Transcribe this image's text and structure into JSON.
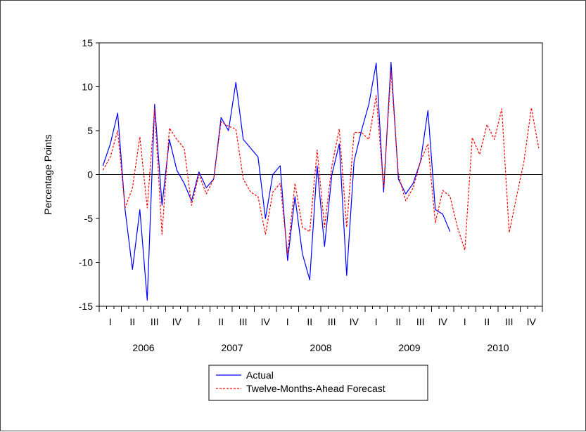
{
  "chart_data": {
    "type": "line",
    "ylabel": "Percentage Points",
    "ylim": [
      -15,
      15
    ],
    "yticks": [
      15,
      10,
      5,
      0,
      -5,
      -10,
      -15
    ],
    "x_axis": {
      "quarter_labels": [
        "I",
        "II",
        "III",
        "IV"
      ],
      "years": [
        "2006",
        "2007",
        "2008",
        "2009",
        "2010"
      ],
      "start": "2006-01",
      "end": "2010-12",
      "frequency": "monthly"
    },
    "zero_line": true,
    "legend": {
      "placement": "bottom-center"
    },
    "series": [
      {
        "name": "Actual",
        "color": "#0000ff",
        "dash": "solid",
        "start": "2006-01",
        "values": [
          1.0,
          3.5,
          7.0,
          -4.0,
          -10.8,
          -4.0,
          -14.3,
          8.0,
          -3.5,
          4.0,
          0.5,
          -1.0,
          -3.0,
          0.3,
          -1.5,
          -0.5,
          6.5,
          5.0,
          10.5,
          4.0,
          3.0,
          2.0,
          -5.0,
          0.0,
          1.0,
          -9.8,
          -2.5,
          -9.0,
          -12.0,
          1.0,
          -8.2,
          0.0,
          3.5,
          -11.5,
          1.5,
          5.0,
          8.0,
          12.7,
          -2.0,
          12.8,
          -0.5,
          -2.2,
          -1.0,
          1.5,
          7.3,
          -4.0,
          -4.5,
          -6.5
        ]
      },
      {
        "name": "Twelve-Months-Ahead Forecast",
        "color": "#ff0000",
        "dash": "dashed",
        "start": "2006-01",
        "values": [
          0.5,
          2.0,
          5.0,
          -3.8,
          -1.5,
          4.3,
          -3.8,
          7.5,
          -6.8,
          5.3,
          4.0,
          3.0,
          -3.5,
          0.0,
          -2.2,
          -0.5,
          6.0,
          5.5,
          5.2,
          -0.5,
          -2.0,
          -2.5,
          -6.8,
          -2.0,
          -1.0,
          -9.0,
          -1.0,
          -6.0,
          -6.5,
          2.8,
          -6.0,
          1.0,
          5.2,
          -6.0,
          4.8,
          4.8,
          4.0,
          9.0,
          -1.5,
          11.8,
          0.0,
          -3.0,
          -1.5,
          1.5,
          3.5,
          -5.5,
          -1.8,
          -2.5,
          -6.0,
          -8.6,
          4.2,
          2.3,
          5.7,
          4.0,
          7.5,
          -6.6,
          -2.5,
          1.5,
          7.6,
          3.0
        ]
      }
    ]
  }
}
